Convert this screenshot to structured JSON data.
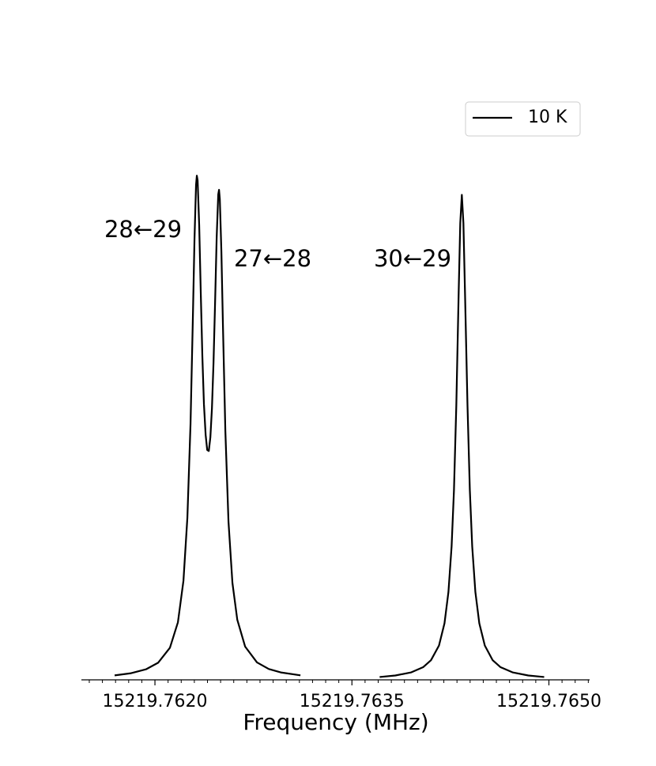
{
  "chart_data": {
    "type": "line",
    "xlabel": "Frequency (MHz)",
    "x": [
      15219.761693,
      15219.761813,
      15219.761934,
      15219.762024,
      15219.762114,
      15219.762175,
      15219.762217,
      15219.762247,
      15219.762271,
      15219.762289,
      15219.762301,
      15219.762313,
      15219.762319,
      15219.762325,
      15219.762337,
      15219.762349,
      15219.762361,
      15219.762373,
      15219.762386,
      15219.762398,
      15219.76241,
      15219.762422,
      15219.762434,
      15219.762446,
      15219.762458,
      15219.76247,
      15219.762482,
      15219.762488,
      15219.762494,
      15219.762506,
      15219.762518,
      15219.762536,
      15219.76256,
      15219.76259,
      15219.762627,
      15219.762687,
      15219.762777,
      15219.762867,
      15219.762958,
      15219.763108,
      null,
      15219.763711,
      15219.763831,
      15219.763952,
      15219.764042,
      15219.764102,
      15219.764163,
      15219.764205,
      15219.764235,
      15219.764259,
      15219.764277,
      15219.764295,
      15219.764313,
      15219.764325,
      15219.764337,
      15219.764349,
      15219.764361,
      15219.76438,
      15219.764398,
      15219.764416,
      15219.76444,
      15219.76447,
      15219.764512,
      15219.764572,
      15219.764632,
      15219.764723,
      15219.764843,
      15219.764964
    ],
    "series": [
      {
        "name": "10 K",
        "color": "#000000",
        "values": [
          0.0088,
          0.0129,
          0.0211,
          0.0338,
          0.0635,
          0.114,
          0.196,
          0.321,
          0.507,
          0.719,
          0.871,
          0.98,
          0.998,
          0.989,
          0.899,
          0.766,
          0.641,
          0.546,
          0.485,
          0.455,
          0.453,
          0.48,
          0.537,
          0.628,
          0.747,
          0.875,
          0.961,
          0.97,
          0.952,
          0.847,
          0.699,
          0.494,
          0.313,
          0.192,
          0.119,
          0.0657,
          0.0345,
          0.0214,
          0.0147,
          0.0089,
          null,
          0.0056,
          0.0086,
          0.0148,
          0.025,
          0.0388,
          0.0679,
          0.112,
          0.174,
          0.264,
          0.375,
          0.544,
          0.768,
          0.904,
          0.96,
          0.904,
          0.768,
          0.544,
          0.375,
          0.264,
          0.174,
          0.112,
          0.0679,
          0.0388,
          0.025,
          0.0148,
          0.0086,
          0.0056
        ]
      }
    ],
    "annotations": [
      "28←29",
      "27←28",
      "30←29"
    ],
    "xlim": [
      15219.76144,
      15219.76531
    ],
    "ylim": [
      0,
      1.158
    ],
    "xticks": [
      {
        "value": 15219.762,
        "label": "15219.7620"
      },
      {
        "value": 15219.7635,
        "label": "15219.7635"
      },
      {
        "value": 15219.765,
        "label": "15219.7650"
      }
    ],
    "xminorticks": [
      15219.7615,
      15219.7616,
      15219.7617,
      15219.7618,
      15219.7619,
      15219.7621,
      15219.7622,
      15219.7623,
      15219.7624,
      15219.7625,
      15219.7626,
      15219.7627,
      15219.7628,
      15219.7629,
      15219.763,
      15219.7631,
      15219.7632,
      15219.7633,
      15219.7634,
      15219.7636,
      15219.7637,
      15219.7638,
      15219.7639,
      15219.764,
      15219.7641,
      15219.7642,
      15219.7643,
      15219.7644,
      15219.7645,
      15219.7646,
      15219.7647,
      15219.7648,
      15219.7649,
      15219.7651,
      15219.7652,
      15219.7653
    ],
    "grid": false,
    "legend": "upper right"
  }
}
